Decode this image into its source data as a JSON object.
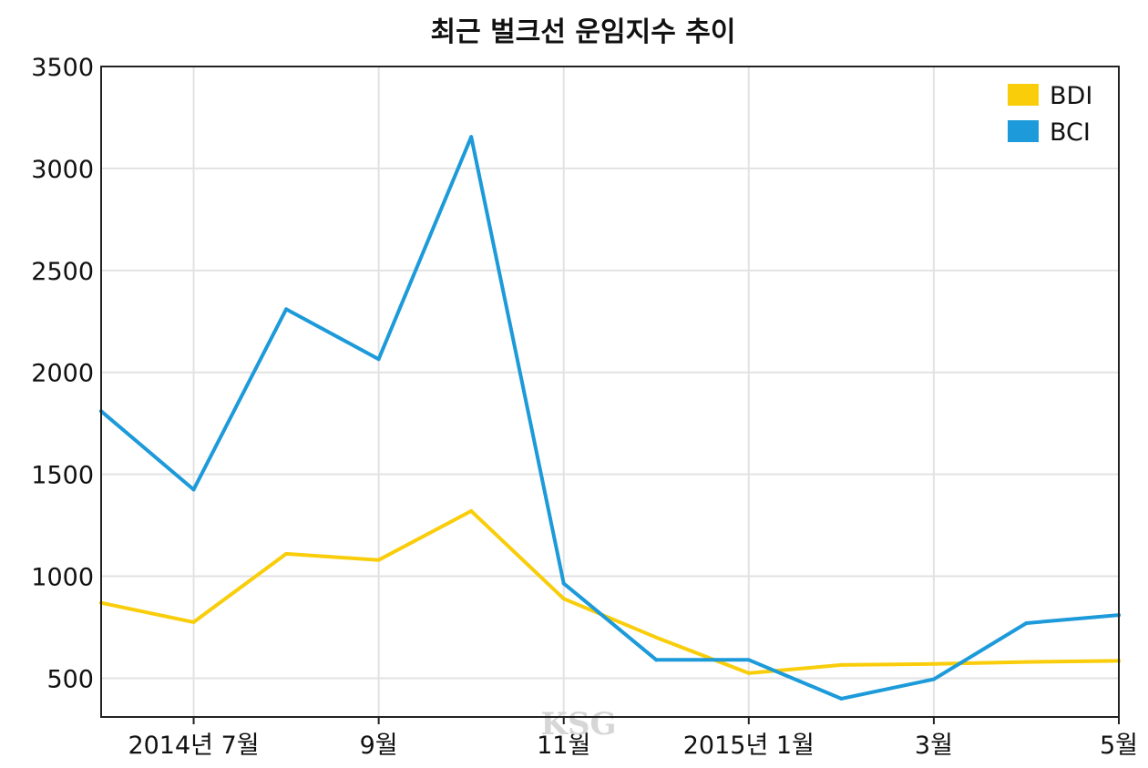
{
  "chart_data": {
    "type": "line",
    "title": "최근 벌크선 운임지수 추이",
    "x": [
      0,
      1,
      2,
      3,
      4,
      5,
      6,
      7,
      8,
      9,
      10,
      11
    ],
    "x_tick_labels": [
      {
        "at": 1,
        "label": "2014년 7월"
      },
      {
        "at": 3,
        "label": "9월"
      },
      {
        "at": 5,
        "label": "11월"
      },
      {
        "at": 7,
        "label": "2015년 1월"
      },
      {
        "at": 9,
        "label": "3월"
      },
      {
        "at": 11,
        "label": "5월"
      }
    ],
    "series": [
      {
        "name": "BDI",
        "color": "#f9cd0a",
        "values": [
          870,
          775,
          1110,
          1080,
          1320,
          890,
          700,
          525,
          565,
          570,
          580,
          585
        ]
      },
      {
        "name": "BCI",
        "color": "#1c9ad9",
        "values": [
          1810,
          1425,
          2310,
          2065,
          3155,
          965,
          590,
          590,
          400,
          495,
          770,
          810
        ]
      }
    ],
    "y_ticks": [
      500,
      1000,
      1500,
      2000,
      2500,
      3000,
      3500
    ],
    "ylim": [
      310,
      3500
    ],
    "xlabel": "",
    "ylabel": "",
    "grid": true,
    "legend_position": "top-right"
  },
  "watermark": "KSG"
}
